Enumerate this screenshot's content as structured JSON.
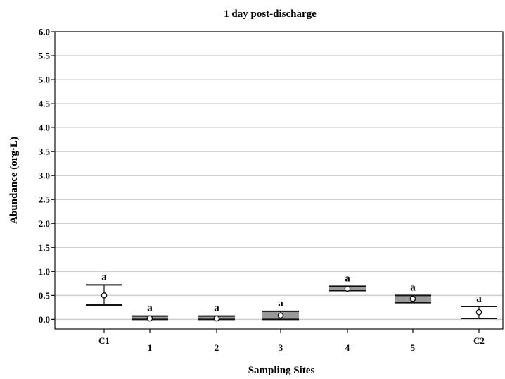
{
  "chart_data": {
    "type": "box",
    "title": "1 day post-discharge",
    "xlabel": "Sampling Sites",
    "ylabel": "Abundance (org·L)",
    "ylim": [
      0.0,
      6.0
    ],
    "yticks": [
      "0.0",
      "0.5",
      "1.0",
      "1.5",
      "2.0",
      "2.5",
      "3.0",
      "3.5",
      "4.0",
      "4.5",
      "5.0",
      "5.5",
      "6.0"
    ],
    "grid": true,
    "categories": [
      "C1",
      "1",
      "2",
      "3",
      "4",
      "5",
      "C2"
    ],
    "mean": [
      0.5,
      0.02,
      0.02,
      0.08,
      0.64,
      0.43,
      0.15
    ],
    "box_low": [
      0.3,
      0.0,
      0.0,
      0.0,
      0.6,
      0.35,
      0.02
    ],
    "box_high": [
      0.72,
      0.07,
      0.07,
      0.17,
      0.69,
      0.5,
      0.27
    ],
    "significance": [
      "a",
      "a",
      "a",
      "a",
      "a",
      "a",
      "a"
    ]
  },
  "colors": {
    "grid": "#cfcfcf",
    "axis": "#111111",
    "box_fill": "#9a9a9a"
  }
}
